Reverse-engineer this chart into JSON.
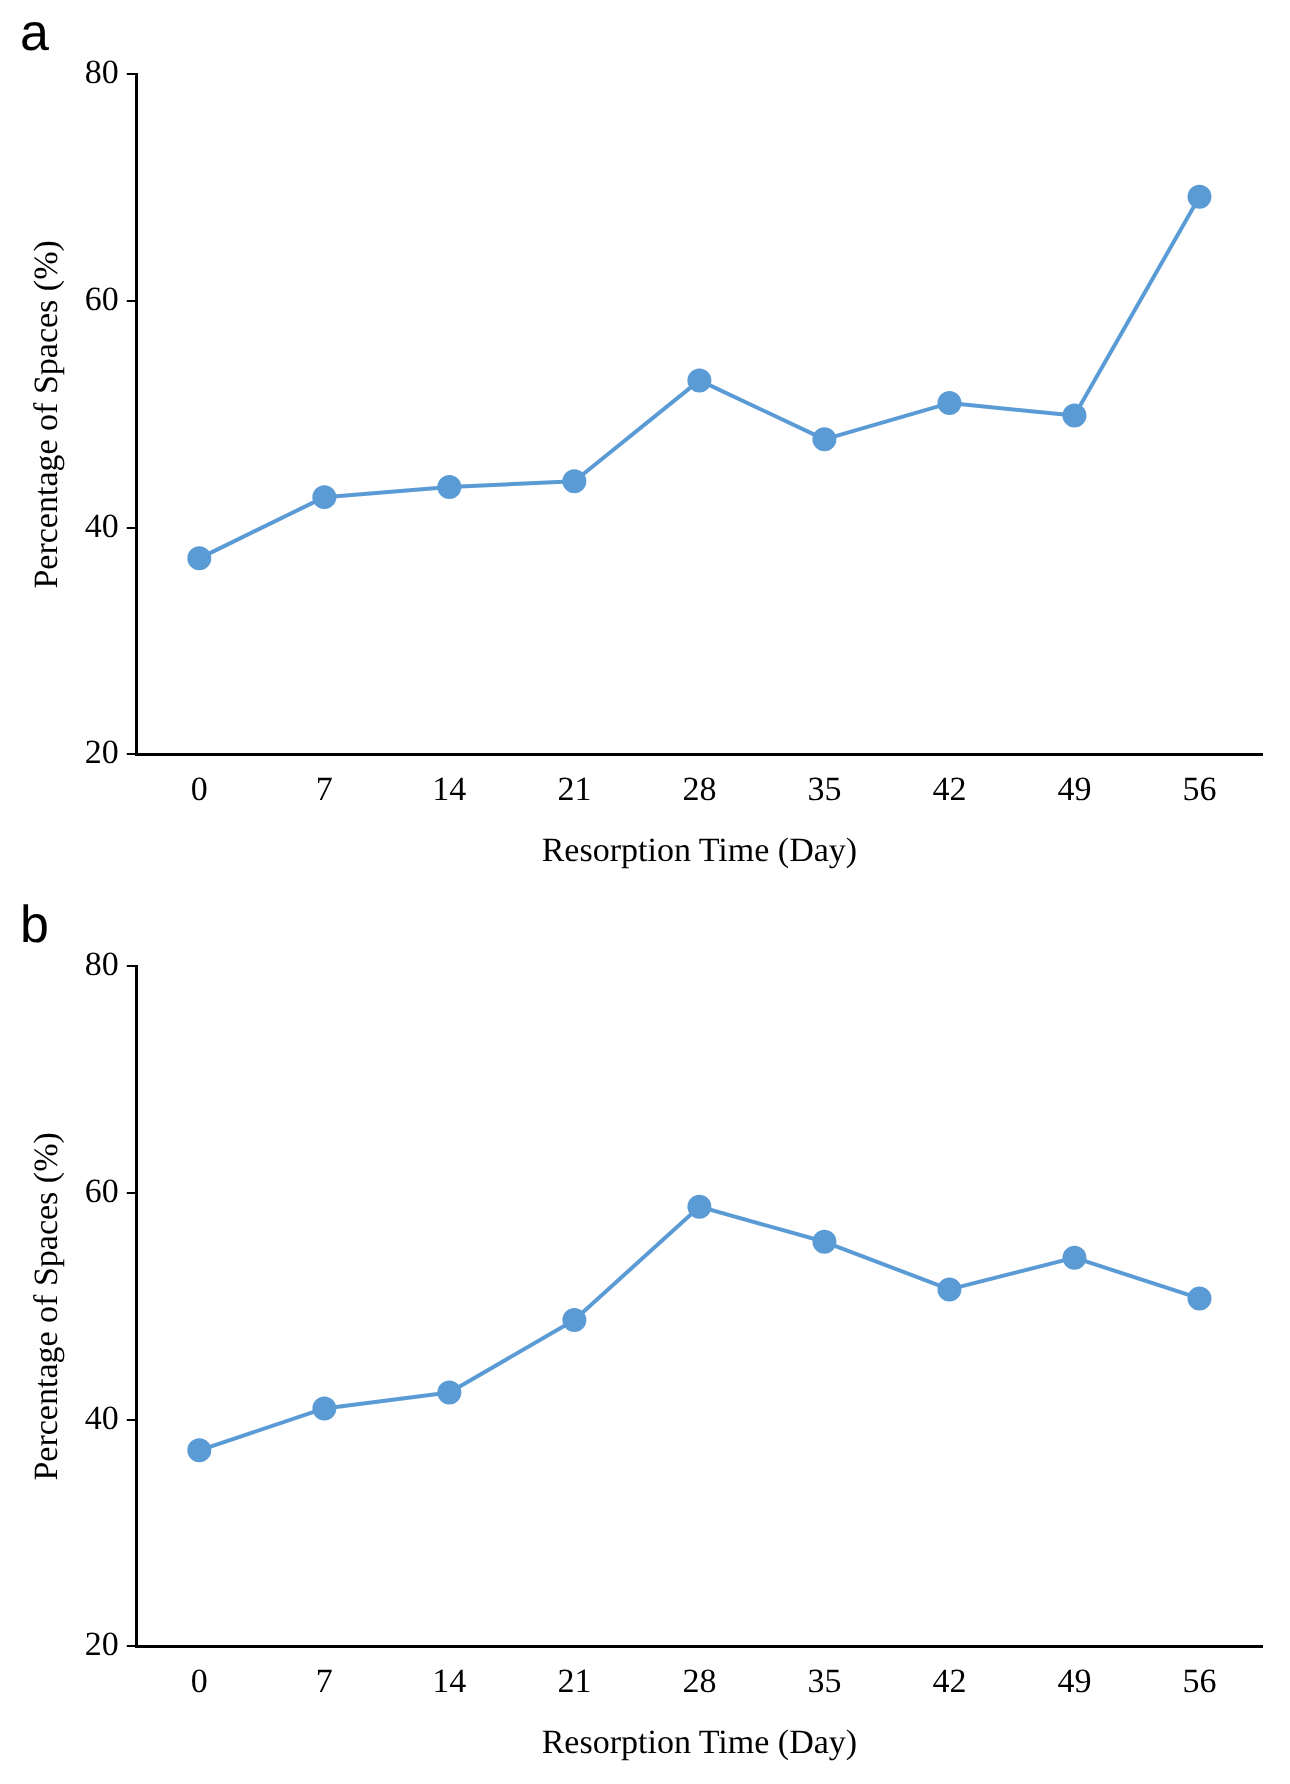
{
  "chart_data": [
    {
      "type": "line",
      "title": "a",
      "xlabel": "Resorption Time (Day)",
      "ylabel": "Percentage of Spaces (%)",
      "categories": [
        "0",
        "7",
        "14",
        "21",
        "28",
        "35",
        "42",
        "49",
        "56"
      ],
      "series": [
        {
          "color": "#5b9bd5",
          "values": [
            37.3,
            42.7,
            43.6,
            44.1,
            53.0,
            47.8,
            51.0,
            49.9,
            69.2
          ]
        }
      ],
      "ylim": [
        20,
        80
      ],
      "yticks": [
        20,
        40,
        60,
        80
      ],
      "grid": false,
      "legend": false,
      "marker": "circle",
      "line_style": "solid"
    },
    {
      "type": "line",
      "title": "b",
      "xlabel": "Resorption Time (Day)",
      "ylabel": "Percentage of Spaces (%)",
      "categories": [
        "0",
        "7",
        "14",
        "21",
        "28",
        "35",
        "42",
        "49",
        "56"
      ],
      "series": [
        {
          "color": "#5b9bd5",
          "values": [
            37.3,
            41.0,
            42.4,
            48.8,
            58.8,
            55.7,
            51.5,
            54.3,
            50.7
          ]
        }
      ],
      "ylim": [
        20,
        80
      ],
      "yticks": [
        20,
        40,
        60,
        80
      ],
      "grid": false,
      "legend": false,
      "marker": "circle",
      "line_style": "solid"
    }
  ]
}
